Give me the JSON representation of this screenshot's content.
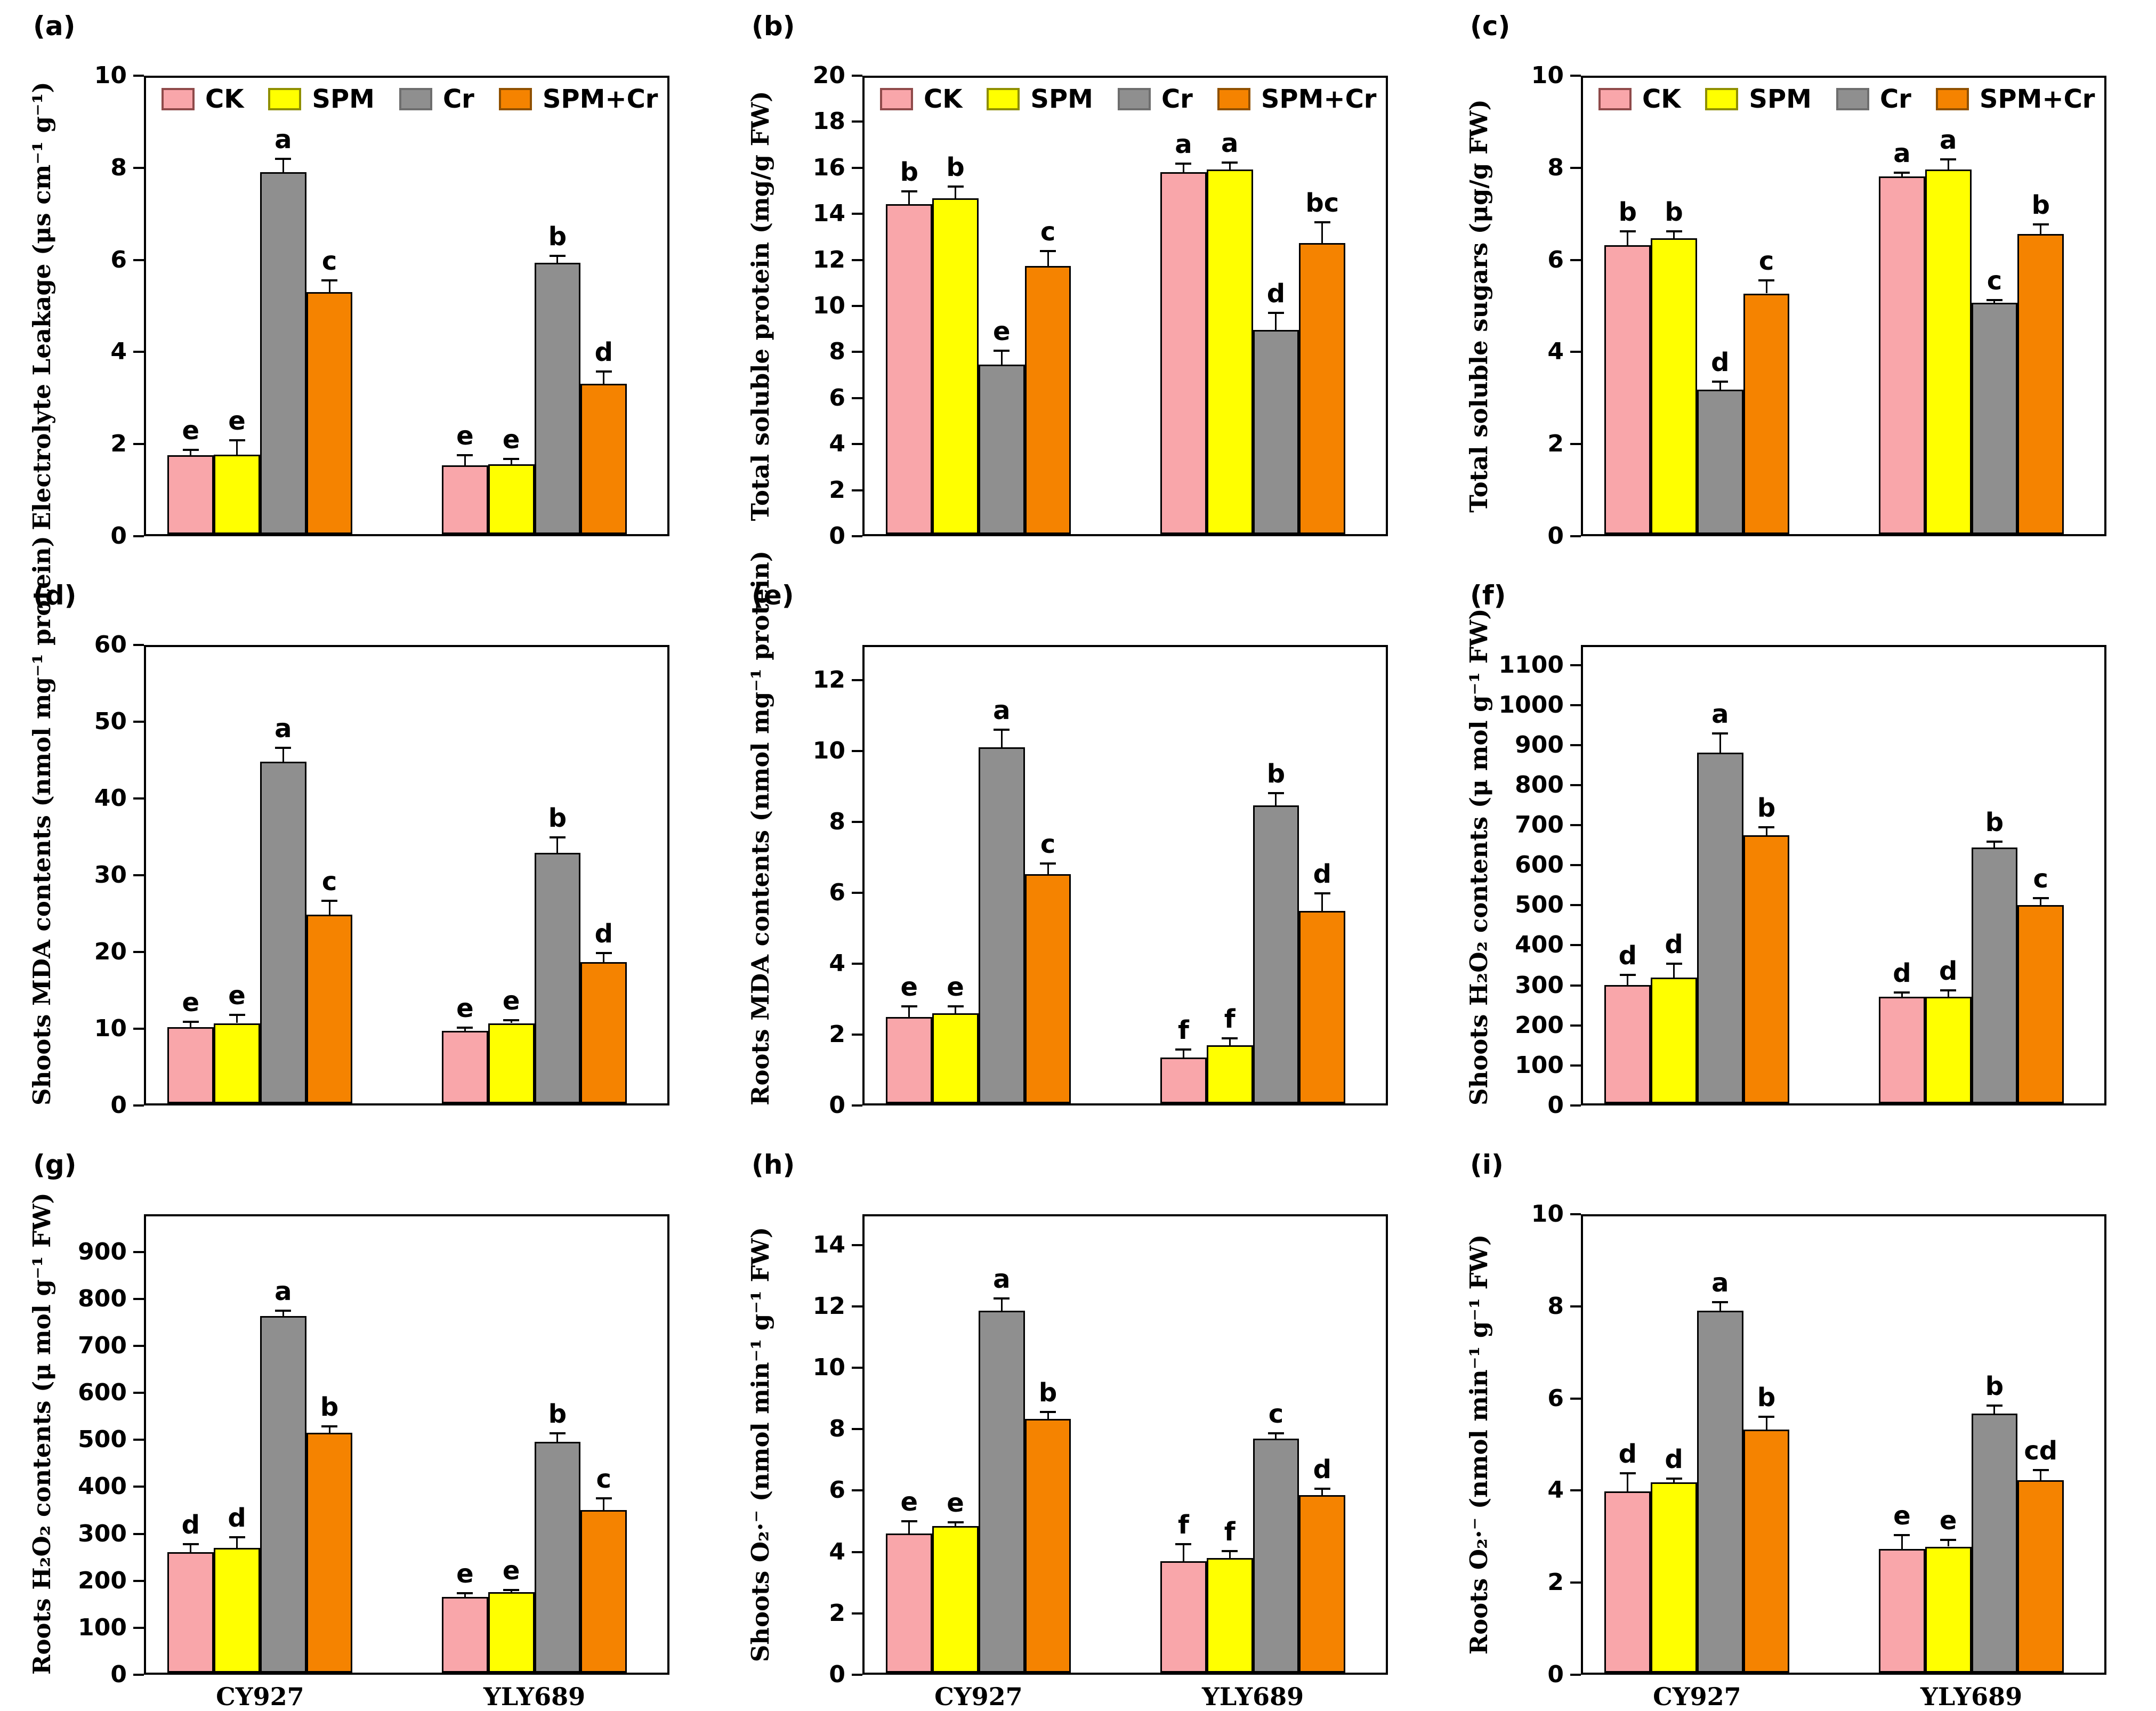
{
  "figure": {
    "background": "#ffffff",
    "treatments": [
      {
        "name": "CK",
        "fill": "#f9a6aa",
        "border": "#8f4a4a"
      },
      {
        "name": "SPM",
        "fill": "#ffff00",
        "border": "#8f8f00"
      },
      {
        "name": "Cr",
        "fill": "#8f8f8f",
        "border": "#6e6e6e"
      },
      {
        "name": "SPM+Cr",
        "fill": "#f58300",
        "border": "#8f5000"
      }
    ],
    "categories": [
      "CY927",
      "YLY689"
    ]
  },
  "chart_data": [
    {
      "id": "a",
      "tag": "(a)",
      "type": "bar",
      "legend": true,
      "show_xlabels": false,
      "ylabel": "Electrolyte Leakage (μs cm⁻¹ g⁻¹)",
      "ylim": [
        0,
        10
      ],
      "yticks": [
        0,
        2,
        4,
        6,
        8,
        10
      ],
      "categories": [
        "CY927",
        "YLY689"
      ],
      "series": [
        {
          "name": "CK",
          "values": [
            1.72,
            1.5
          ],
          "errors": [
            0.12,
            0.22
          ],
          "letters": [
            "e",
            "e"
          ]
        },
        {
          "name": "SPM",
          "values": [
            1.73,
            1.52
          ],
          "errors": [
            0.32,
            0.12
          ],
          "letters": [
            "e",
            "e"
          ]
        },
        {
          "name": "Cr",
          "values": [
            7.9,
            5.92
          ],
          "errors": [
            0.28,
            0.15
          ],
          "letters": [
            "a",
            "b"
          ]
        },
        {
          "name": "SPM+Cr",
          "values": [
            5.28,
            3.28
          ],
          "errors": [
            0.25,
            0.27
          ],
          "letters": [
            "c",
            "d"
          ]
        }
      ]
    },
    {
      "id": "b",
      "tag": "(b)",
      "type": "bar",
      "legend": true,
      "show_xlabels": false,
      "ylabel": "Total soluble protein (mg/g FW)",
      "ylim": [
        0,
        20
      ],
      "yticks": [
        0,
        2,
        4,
        6,
        8,
        10,
        12,
        14,
        16,
        18,
        20
      ],
      "categories": [
        "CY927",
        "YLY689"
      ],
      "series": [
        {
          "name": "CK",
          "values": [
            14.4,
            15.8
          ],
          "errors": [
            0.55,
            0.35
          ],
          "letters": [
            "b",
            "a"
          ]
        },
        {
          "name": "SPM",
          "values": [
            14.65,
            15.9
          ],
          "errors": [
            0.5,
            0.3
          ],
          "letters": [
            "b",
            "a"
          ]
        },
        {
          "name": "Cr",
          "values": [
            7.4,
            8.9
          ],
          "errors": [
            0.6,
            0.75
          ],
          "letters": [
            "e",
            "d"
          ]
        },
        {
          "name": "SPM+Cr",
          "values": [
            11.7,
            12.7
          ],
          "errors": [
            0.65,
            0.9
          ],
          "letters": [
            "c",
            "bc"
          ]
        }
      ]
    },
    {
      "id": "c",
      "tag": "(c)",
      "type": "bar",
      "legend": true,
      "show_xlabels": false,
      "ylabel": "Total soluble sugars (μg/g FW)",
      "ylim": [
        0,
        10
      ],
      "yticks": [
        0,
        2,
        4,
        6,
        8,
        10
      ],
      "categories": [
        "CY927",
        "YLY689"
      ],
      "series": [
        {
          "name": "CK",
          "values": [
            6.3,
            7.8
          ],
          "errors": [
            0.3,
            0.08
          ],
          "letters": [
            "b",
            "a"
          ]
        },
        {
          "name": "SPM",
          "values": [
            6.45,
            7.95
          ],
          "errors": [
            0.15,
            0.22
          ],
          "letters": [
            "b",
            "a"
          ]
        },
        {
          "name": "Cr",
          "values": [
            3.15,
            5.05
          ],
          "errors": [
            0.18,
            0.06
          ],
          "letters": [
            "d",
            "c"
          ]
        },
        {
          "name": "SPM+Cr",
          "values": [
            5.25,
            6.55
          ],
          "errors": [
            0.28,
            0.2
          ],
          "letters": [
            "c",
            "b"
          ]
        }
      ]
    },
    {
      "id": "d",
      "tag": "(d)",
      "type": "bar",
      "legend": false,
      "show_xlabels": false,
      "ylabel": "Shoots MDA contents (nmol mg⁻¹ protein)",
      "ylim": [
        0,
        60
      ],
      "yticks": [
        0,
        10,
        20,
        30,
        40,
        50,
        60
      ],
      "categories": [
        "CY927",
        "YLY689"
      ],
      "series": [
        {
          "name": "CK",
          "values": [
            10.0,
            9.5
          ],
          "errors": [
            0.7,
            0.4
          ],
          "letters": [
            "e",
            "e"
          ]
        },
        {
          "name": "SPM",
          "values": [
            10.5,
            10.5
          ],
          "errors": [
            1.1,
            0.4
          ],
          "letters": [
            "e",
            "e"
          ]
        },
        {
          "name": "Cr",
          "values": [
            44.7,
            32.8
          ],
          "errors": [
            1.8,
            2.0
          ],
          "letters": [
            "a",
            "b"
          ]
        },
        {
          "name": "SPM+Cr",
          "values": [
            24.7,
            18.5
          ],
          "errors": [
            1.8,
            1.2
          ],
          "letters": [
            "c",
            "d"
          ]
        }
      ]
    },
    {
      "id": "e",
      "tag": "(e)",
      "type": "bar",
      "legend": false,
      "show_xlabels": false,
      "ylabel": "Roots MDA contents (nmol mg⁻¹ protein)",
      "ylim": [
        0,
        13
      ],
      "yticks": [
        0,
        2,
        4,
        6,
        8,
        10,
        12
      ],
      "categories": [
        "CY927",
        "YLY689"
      ],
      "series": [
        {
          "name": "CK",
          "values": [
            2.45,
            1.3
          ],
          "errors": [
            0.3,
            0.22
          ],
          "letters": [
            "e",
            "f"
          ]
        },
        {
          "name": "SPM",
          "values": [
            2.55,
            1.65
          ],
          "errors": [
            0.2,
            0.2
          ],
          "letters": [
            "e",
            "f"
          ]
        },
        {
          "name": "Cr",
          "values": [
            10.1,
            8.45
          ],
          "errors": [
            0.5,
            0.35
          ],
          "letters": [
            "a",
            "b"
          ]
        },
        {
          "name": "SPM+Cr",
          "values": [
            6.5,
            5.45
          ],
          "errors": [
            0.3,
            0.5
          ],
          "letters": [
            "c",
            "d"
          ]
        }
      ]
    },
    {
      "id": "f",
      "tag": "(f)",
      "type": "bar",
      "legend": false,
      "show_xlabels": false,
      "ylabel": "Shoots H₂O₂  contents (μ mol g⁻¹ FW)",
      "ylim": [
        0,
        1150
      ],
      "yticks": [
        0,
        100,
        200,
        300,
        400,
        500,
        600,
        700,
        800,
        900,
        1000,
        1100
      ],
      "categories": [
        "CY927",
        "YLY689"
      ],
      "series": [
        {
          "name": "CK",
          "values": [
            297,
            268
          ],
          "errors": [
            25,
            10
          ],
          "letters": [
            "d",
            "d"
          ]
        },
        {
          "name": "SPM",
          "values": [
            315,
            268
          ],
          "errors": [
            35,
            15
          ],
          "letters": [
            "d",
            "d"
          ]
        },
        {
          "name": "Cr",
          "values": [
            880,
            642
          ],
          "errors": [
            48,
            15
          ],
          "letters": [
            "a",
            "b"
          ]
        },
        {
          "name": "SPM+Cr",
          "values": [
            672,
            497
          ],
          "errors": [
            20,
            18
          ],
          "letters": [
            "b",
            "c"
          ]
        }
      ]
    },
    {
      "id": "g",
      "tag": "(g)",
      "type": "bar",
      "legend": false,
      "show_xlabels": true,
      "ylabel": "Roots H₂O₂  contents (μ mol g⁻¹ FW)",
      "ylim": [
        0,
        980
      ],
      "yticks": [
        0,
        100,
        200,
        300,
        400,
        500,
        600,
        700,
        800,
        900
      ],
      "categories": [
        "CY927",
        "YLY689"
      ],
      "series": [
        {
          "name": "CK",
          "values": [
            257,
            162
          ],
          "errors": [
            18,
            8
          ],
          "letters": [
            "d",
            "e"
          ]
        },
        {
          "name": "SPM",
          "values": [
            267,
            172
          ],
          "errors": [
            22,
            5
          ],
          "letters": [
            "d",
            "e"
          ]
        },
        {
          "name": "Cr",
          "values": [
            762,
            493
          ],
          "errors": [
            12,
            18
          ],
          "letters": [
            "a",
            "b"
          ]
        },
        {
          "name": "SPM+Cr",
          "values": [
            513,
            348
          ],
          "errors": [
            13,
            25
          ],
          "letters": [
            "b",
            "c"
          ]
        }
      ]
    },
    {
      "id": "h",
      "tag": "(h)",
      "type": "bar",
      "legend": false,
      "show_xlabels": true,
      "ylabel": "Shoots O₂·⁻ (nmol min⁻¹ g⁻¹ FW)",
      "ylim": [
        0,
        15
      ],
      "yticks": [
        0,
        2,
        4,
        6,
        8,
        10,
        12,
        14
      ],
      "categories": [
        "CY927",
        "YLY689"
      ],
      "series": [
        {
          "name": "CK",
          "values": [
            4.55,
            3.65
          ],
          "errors": [
            0.4,
            0.55
          ],
          "letters": [
            "e",
            "f"
          ]
        },
        {
          "name": "SPM",
          "values": [
            4.8,
            3.75
          ],
          "errors": [
            0.12,
            0.22
          ],
          "letters": [
            "e",
            "f"
          ]
        },
        {
          "name": "Cr",
          "values": [
            11.85,
            7.65
          ],
          "errors": [
            0.4,
            0.18
          ],
          "letters": [
            "a",
            "c"
          ]
        },
        {
          "name": "SPM+Cr",
          "values": [
            8.3,
            5.8
          ],
          "errors": [
            0.22,
            0.22
          ],
          "letters": [
            "b",
            "d"
          ]
        }
      ]
    },
    {
      "id": "i",
      "tag": "(i)",
      "type": "bar",
      "legend": false,
      "show_xlabels": true,
      "ylabel": "Roots O₂·⁻ (nmol min⁻¹ g⁻¹ FW)",
      "ylim": [
        0,
        10
      ],
      "yticks": [
        0,
        2,
        4,
        6,
        8,
        10
      ],
      "categories": [
        "CY927",
        "YLY689"
      ],
      "series": [
        {
          "name": "CK",
          "values": [
            3.95,
            2.7
          ],
          "errors": [
            0.4,
            0.3
          ],
          "letters": [
            "d",
            "e"
          ]
        },
        {
          "name": "SPM",
          "values": [
            4.15,
            2.75
          ],
          "errors": [
            0.08,
            0.15
          ],
          "letters": [
            "d",
            "e"
          ]
        },
        {
          "name": "Cr",
          "values": [
            7.9,
            5.65
          ],
          "errors": [
            0.18,
            0.18
          ],
          "letters": [
            "a",
            "b"
          ]
        },
        {
          "name": "SPM+Cr",
          "values": [
            5.3,
            4.2
          ],
          "errors": [
            0.28,
            0.22
          ],
          "letters": [
            "b",
            "cd"
          ]
        }
      ]
    }
  ]
}
